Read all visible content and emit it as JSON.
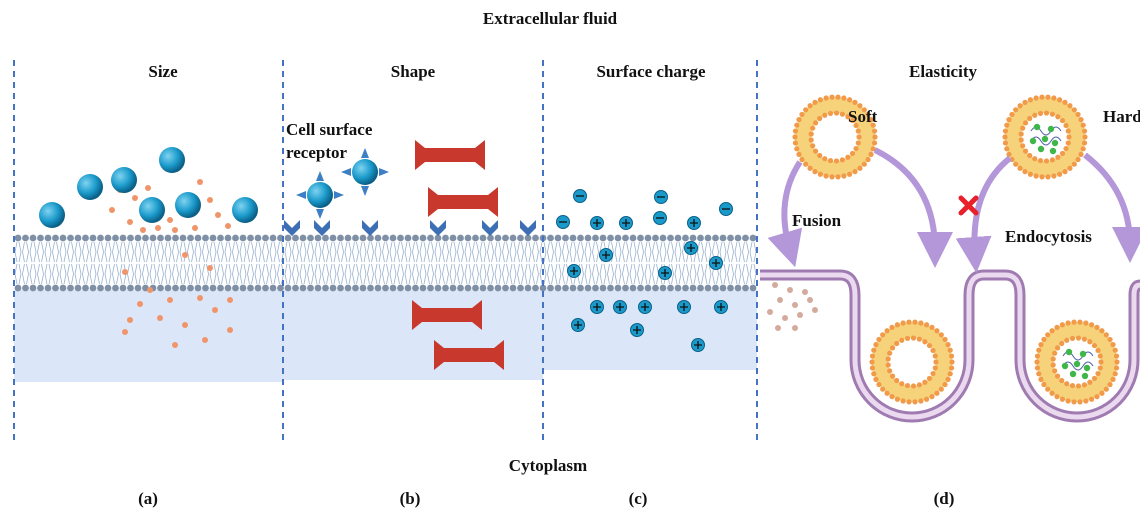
{
  "header": {
    "top_label": "Extracellular fluid",
    "bottom_label": "Cytoplasm"
  },
  "panels": [
    {
      "title": "Size",
      "label": "(a)"
    },
    {
      "title": "Shape",
      "label": "(b)",
      "annotation": [
        "Cell surface",
        "receptor"
      ]
    },
    {
      "title": "Surface charge",
      "label": "(c)"
    },
    {
      "title": "Elasticity",
      "label": "(d)",
      "annotations": {
        "soft": "Soft",
        "hard": "Hard",
        "fusion": "Fusion",
        "endocytosis": "Endocytosis"
      }
    }
  ]
}
